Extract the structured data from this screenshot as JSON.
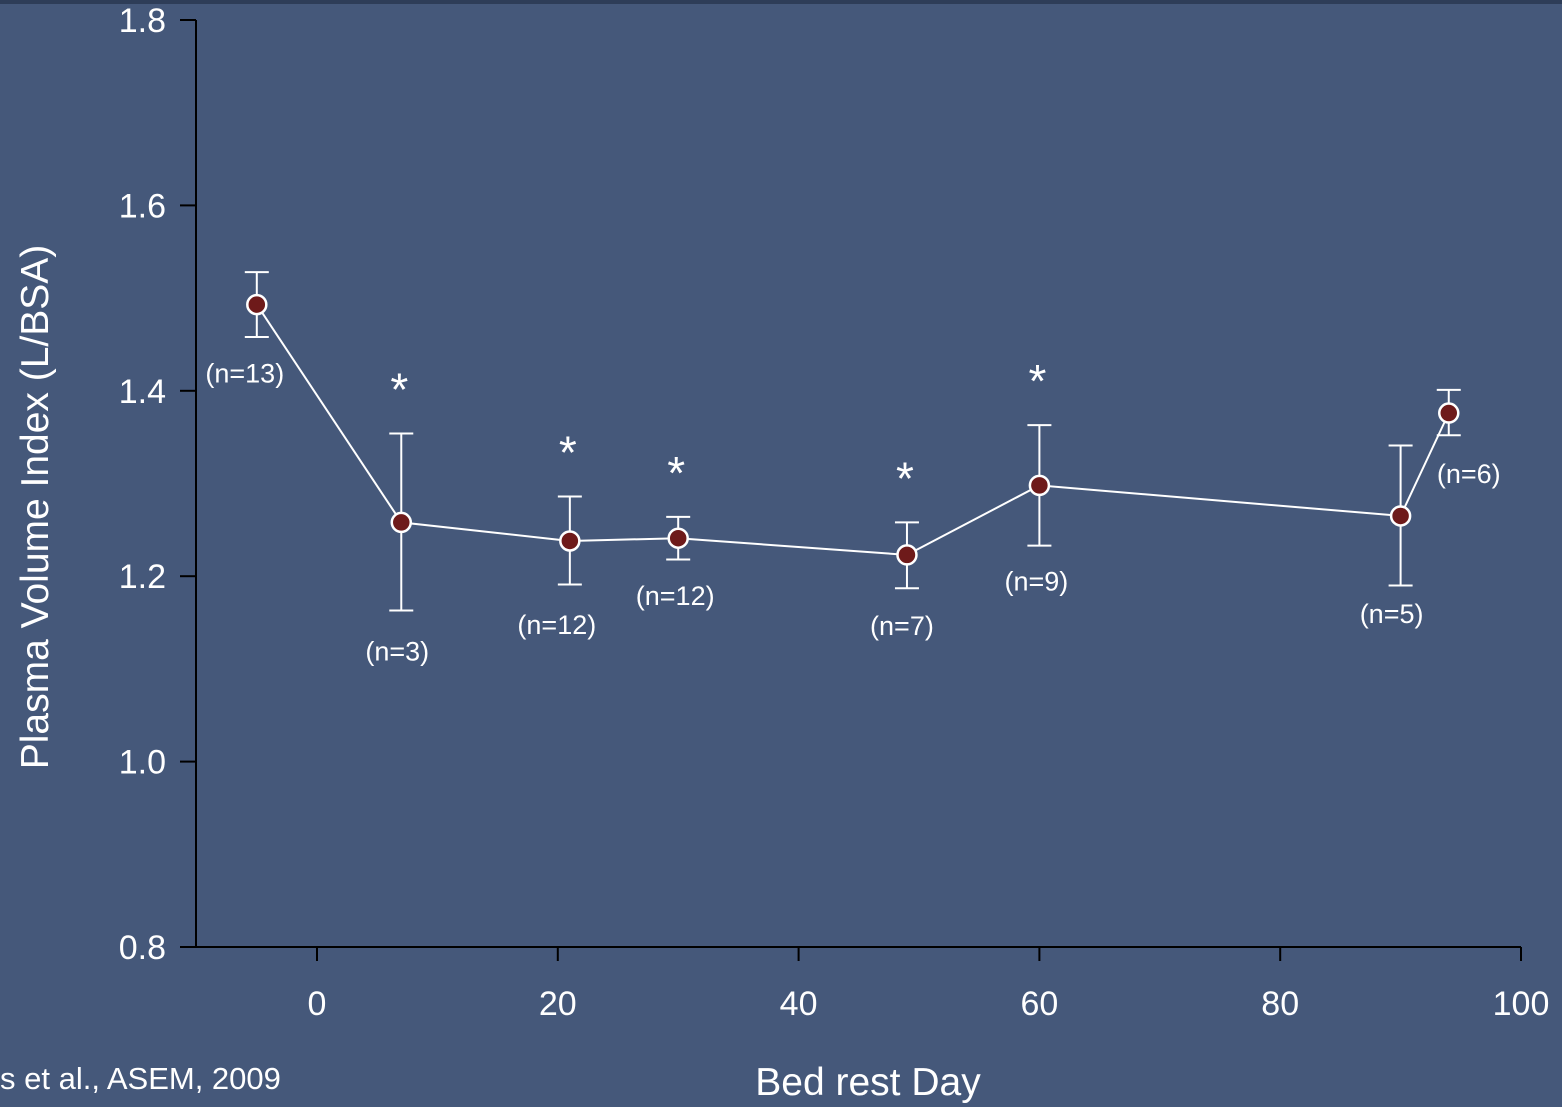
{
  "chart_data": {
    "type": "line",
    "title": "",
    "xlabel": "Bed rest Day",
    "ylabel": "Plasma Volume Index (L/BSA)",
    "xlim": [
      -10,
      100
    ],
    "ylim": [
      0.8,
      1.8
    ],
    "x_ticks": [
      0,
      20,
      40,
      60,
      80,
      100
    ],
    "y_ticks": [
      0.8,
      1.0,
      1.2,
      1.4,
      1.6,
      1.8
    ],
    "x_tick_labels": [
      "0",
      "20",
      "40",
      "60",
      "80",
      "100"
    ],
    "y_tick_labels": [
      "0.8",
      "1.0",
      "1.2",
      "1.4",
      "1.6",
      "1.8"
    ],
    "grid": false,
    "series": [
      {
        "points": [
          {
            "x": -5,
            "y": 1.493,
            "err_low": 1.458,
            "err_high": 1.528,
            "n_label": "(n=13)",
            "significant": false
          },
          {
            "x": 7,
            "y": 1.258,
            "err_low": 1.163,
            "err_high": 1.354,
            "n_label": "(n=3)",
            "significant": true
          },
          {
            "x": 21,
            "y": 1.238,
            "err_low": 1.191,
            "err_high": 1.286,
            "n_label": "(n=12)",
            "significant": true
          },
          {
            "x": 30,
            "y": 1.241,
            "err_low": 1.218,
            "err_high": 1.264,
            "n_label": "(n=12)",
            "significant": true
          },
          {
            "x": 49,
            "y": 1.223,
            "err_low": 1.187,
            "err_high": 1.258,
            "n_label": "(n=7)",
            "significant": true
          },
          {
            "x": 60,
            "y": 1.298,
            "err_low": 1.233,
            "err_high": 1.363,
            "n_label": "(n=9)",
            "significant": true
          },
          {
            "x": 90,
            "y": 1.265,
            "err_low": 1.19,
            "err_high": 1.341,
            "n_label": "(n=5)",
            "significant": false
          },
          {
            "x": 94,
            "y": 1.376,
            "err_low": 1.352,
            "err_high": 1.401,
            "n_label": "(n=6)",
            "significant": false
          }
        ]
      }
    ],
    "significance_marker": "*",
    "source": "s et al., ASEM, 2009",
    "colors": {
      "background": "#45587a",
      "axes": "#000000",
      "line": "#ffffff",
      "marker_fill": "#6e1a1a",
      "marker_edge": "#ffffff",
      "text": "#ffffff"
    }
  }
}
